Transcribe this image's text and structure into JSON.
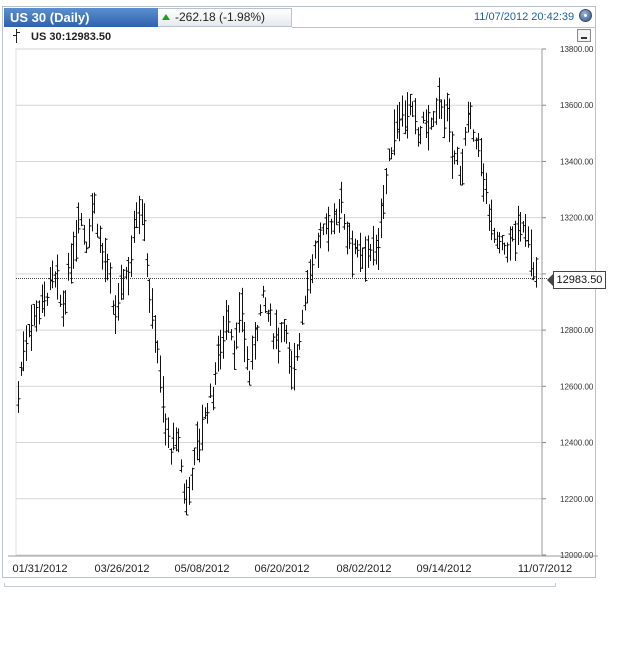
{
  "header": {
    "instrument_title": "US 30 (Daily)",
    "change_text": "-262.18 (-1.98%)",
    "timestamp": "11/07/2012 20:42:39"
  },
  "info_line": {
    "label": "US 30:12983.50"
  },
  "colors": {
    "title_tab": "#2d62ad",
    "up_arrow": "#1aa31a",
    "timestamp": "#2060a8",
    "bars": "#111111"
  },
  "icons": {
    "chart_type": "ohlc-bar-icon",
    "close": "close-icon",
    "minimize": "minimize-icon"
  },
  "chart_data": {
    "type": "ohlc",
    "title": "US 30 (Daily)",
    "last_value": 12983.5,
    "last_value_label": "12983.50",
    "ylim": [
      12000,
      13800
    ],
    "y_ticks": [
      12000,
      12200,
      12400,
      12600,
      12800,
      13000,
      13200,
      13400,
      13600,
      13800
    ],
    "y_tick_labels": [
      "12000.00",
      "12200.00",
      "12400.00",
      "12600.00",
      "12800.00",
      "13000.00",
      "13200.00",
      "13400.00",
      "13600.00",
      "13800.00"
    ],
    "x_tick_labels": [
      "01/31/2012",
      "03/26/2012",
      "05/08/2012",
      "06/20/2012",
      "08/02/2012",
      "09/14/2012",
      "11/07/2012"
    ],
    "grid": true,
    "path_anchors": [
      [
        0,
        12580
      ],
      [
        6,
        12780
      ],
      [
        15,
        12870
      ],
      [
        22,
        12910
      ],
      [
        30,
        12990
      ],
      [
        38,
        12870
      ],
      [
        46,
        13070
      ],
      [
        52,
        13230
      ],
      [
        58,
        13110
      ],
      [
        64,
        13270
      ],
      [
        70,
        13100
      ],
      [
        76,
        13000
      ],
      [
        82,
        12830
      ],
      [
        88,
        12980
      ],
      [
        94,
        13020
      ],
      [
        100,
        13220
      ],
      [
        106,
        13260
      ],
      [
        112,
        12900
      ],
      [
        118,
        12760
      ],
      [
        124,
        12480
      ],
      [
        130,
        12370
      ],
      [
        136,
        12410
      ],
      [
        142,
        12180
      ],
      [
        148,
        12310
      ],
      [
        154,
        12420
      ],
      [
        160,
        12520
      ],
      [
        166,
        12600
      ],
      [
        172,
        12760
      ],
      [
        178,
        12870
      ],
      [
        184,
        12720
      ],
      [
        190,
        12870
      ],
      [
        196,
        12620
      ],
      [
        202,
        12800
      ],
      [
        208,
        12920
      ],
      [
        214,
        12820
      ],
      [
        220,
        12760
      ],
      [
        226,
        12840
      ],
      [
        232,
        12620
      ],
      [
        238,
        12760
      ],
      [
        244,
        12930
      ],
      [
        250,
        13050
      ],
      [
        256,
        13100
      ],
      [
        262,
        13170
      ],
      [
        268,
        13190
      ],
      [
        274,
        13260
      ],
      [
        280,
        13150
      ],
      [
        286,
        13100
      ],
      [
        292,
        13020
      ],
      [
        298,
        13110
      ],
      [
        304,
        13050
      ],
      [
        310,
        13260
      ],
      [
        316,
        13420
      ],
      [
        322,
        13560
      ],
      [
        328,
        13590
      ],
      [
        334,
        13570
      ],
      [
        340,
        13490
      ],
      [
        346,
        13550
      ],
      [
        352,
        13520
      ],
      [
        358,
        13620
      ],
      [
        364,
        13560
      ],
      [
        370,
        13420
      ],
      [
        376,
        13380
      ],
      [
        382,
        13520
      ],
      [
        388,
        13510
      ],
      [
        394,
        13350
      ],
      [
        400,
        13240
      ],
      [
        406,
        13100
      ],
      [
        412,
        13080
      ],
      [
        418,
        13110
      ],
      [
        424,
        13150
      ],
      [
        430,
        13180
      ],
      [
        436,
        13080
      ],
      [
        440,
        12983.5
      ]
    ],
    "bar_count": 198,
    "bar_seed": 7
  }
}
